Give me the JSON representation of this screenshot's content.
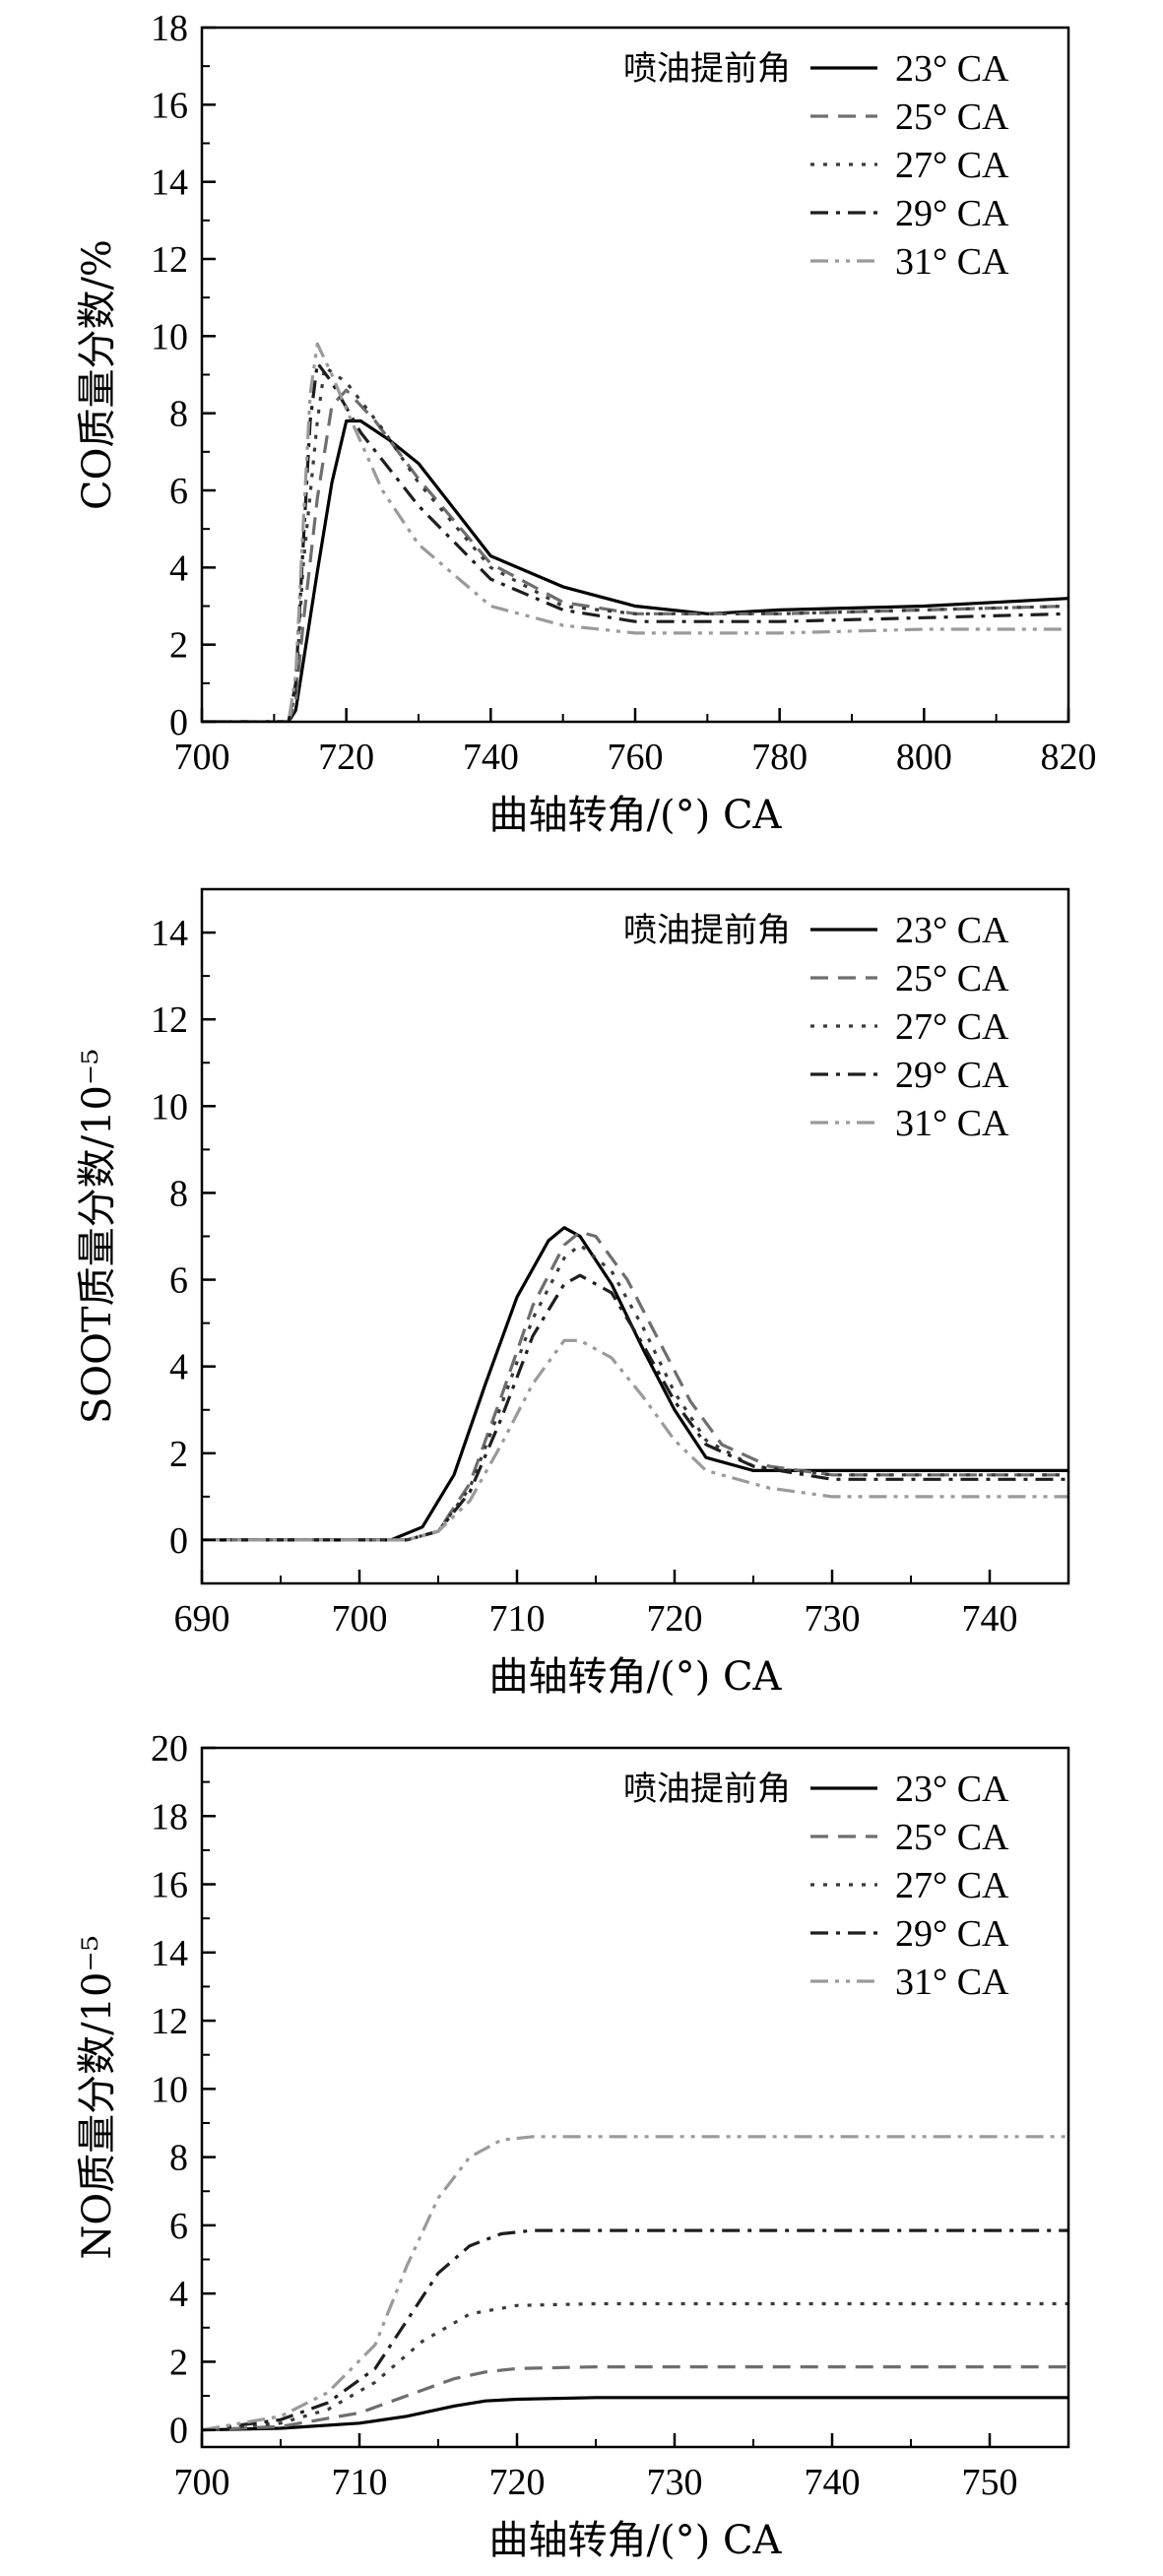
{
  "chart_data": [
    {
      "type": "line",
      "ylabel": "CO质量分数/%",
      "xlabel": "曲轴转角/(°) CA",
      "xlim": [
        700,
        820
      ],
      "ylim": [
        0,
        18
      ],
      "xticks": [
        700,
        720,
        740,
        760,
        780,
        800,
        820
      ],
      "yticks": [
        0,
        2,
        4,
        6,
        8,
        10,
        12,
        14,
        16,
        18
      ],
      "legend_title": "喷油提前角",
      "legend_position": "top-right",
      "grid": false,
      "series": [
        {
          "name": "23° CA",
          "color": "#000000",
          "dash": "solid",
          "x": [
            700,
            712,
            713,
            714,
            716,
            718,
            720,
            722,
            726,
            730,
            735,
            740,
            750,
            760,
            770,
            780,
            800,
            820
          ],
          "y": [
            0,
            0,
            0.3,
            1.5,
            3.9,
            6.2,
            7.8,
            7.8,
            7.3,
            6.7,
            5.5,
            4.3,
            3.5,
            3.0,
            2.8,
            2.9,
            3.0,
            3.2
          ]
        },
        {
          "name": "25° CA",
          "color": "#6e6e6e",
          "dash": "dashed",
          "x": [
            700,
            712,
            713,
            714,
            716,
            718,
            720,
            724,
            730,
            740,
            750,
            760,
            780,
            800,
            820
          ],
          "y": [
            0,
            0,
            0.5,
            2.5,
            5.8,
            8.2,
            8.6,
            7.8,
            6.3,
            4.1,
            3.1,
            2.8,
            2.8,
            2.9,
            3.0
          ]
        },
        {
          "name": "27° CA",
          "color": "#3a3a3a",
          "dash": "dotted",
          "x": [
            700,
            712,
            713,
            714,
            716,
            717,
            720,
            725,
            730,
            740,
            750,
            760,
            780,
            800,
            820
          ],
          "y": [
            0,
            0,
            0.8,
            4.0,
            7.8,
            9.2,
            8.8,
            7.6,
            6.2,
            4.0,
            3.0,
            2.8,
            2.8,
            2.9,
            3.0
          ]
        },
        {
          "name": "29° CA",
          "color": "#1e1e1e",
          "dash": "dashdot",
          "x": [
            700,
            712,
            713,
            714,
            715,
            716,
            718,
            722,
            730,
            740,
            750,
            760,
            780,
            800,
            820
          ],
          "y": [
            0,
            0,
            1.0,
            4.5,
            7.8,
            9.3,
            8.8,
            7.5,
            5.6,
            3.7,
            2.9,
            2.6,
            2.6,
            2.7,
            2.8
          ]
        },
        {
          "name": "31° CA",
          "color": "#9a9a9a",
          "dash": "dashdotdot",
          "x": [
            700,
            712,
            713,
            714,
            715,
            716,
            718,
            720,
            725,
            730,
            740,
            750,
            760,
            780,
            800,
            820
          ],
          "y": [
            0,
            0,
            1.2,
            5.0,
            8.5,
            9.8,
            9.0,
            8.1,
            6.0,
            4.6,
            3.0,
            2.5,
            2.3,
            2.3,
            2.4,
            2.4
          ]
        }
      ]
    },
    {
      "type": "line",
      "ylabel": "SOOT质量分数/10⁻⁵",
      "xlabel": "曲轴转角/(°) CA",
      "xlim": [
        690,
        745
      ],
      "ylim": [
        -1,
        15
      ],
      "xticks": [
        690,
        700,
        710,
        720,
        730,
        740
      ],
      "yticks": [
        0,
        2,
        4,
        6,
        8,
        10,
        12,
        14
      ],
      "legend_title": "喷油提前角",
      "legend_position": "top-right",
      "grid": false,
      "series": [
        {
          "name": "23° CA",
          "color": "#000000",
          "dash": "solid",
          "x": [
            690,
            702,
            704,
            706,
            708,
            710,
            712,
            713,
            714,
            716,
            718,
            720,
            722,
            725,
            730,
            745
          ],
          "y": [
            0,
            0,
            0.3,
            1.5,
            3.6,
            5.6,
            6.9,
            7.2,
            7.0,
            5.9,
            4.4,
            3.0,
            1.9,
            1.6,
            1.6,
            1.6
          ]
        },
        {
          "name": "25° CA",
          "color": "#6e6e6e",
          "dash": "dashed",
          "x": [
            690,
            703,
            705,
            707,
            709,
            711,
            713,
            714,
            715,
            717,
            719,
            721,
            723,
            726,
            730,
            745
          ],
          "y": [
            0,
            0,
            0.2,
            1.3,
            3.3,
            5.4,
            6.8,
            7.1,
            7.0,
            6.0,
            4.6,
            3.2,
            2.2,
            1.7,
            1.5,
            1.5
          ]
        },
        {
          "name": "27° CA",
          "color": "#3a3a3a",
          "dash": "dotted",
          "x": [
            690,
            703,
            705,
            707,
            709,
            711,
            713,
            714,
            716,
            718,
            720,
            722,
            725,
            730,
            745
          ],
          "y": [
            0,
            0,
            0.2,
            1.2,
            3.1,
            5.1,
            6.5,
            6.8,
            6.2,
            4.9,
            3.4,
            2.3,
            1.7,
            1.5,
            1.5
          ]
        },
        {
          "name": "29° CA",
          "color": "#1e1e1e",
          "dash": "dashdot",
          "x": [
            690,
            703,
            705,
            707,
            709,
            711,
            713,
            714,
            716,
            718,
            720,
            722,
            725,
            730,
            745
          ],
          "y": [
            0,
            0,
            0.2,
            1.1,
            2.8,
            4.7,
            5.9,
            6.1,
            5.7,
            4.5,
            3.2,
            2.2,
            1.7,
            1.4,
            1.4
          ]
        },
        {
          "name": "31° CA",
          "color": "#9a9a9a",
          "dash": "dashdotdot",
          "x": [
            690,
            703,
            705,
            707,
            709,
            711,
            713,
            714,
            716,
            718,
            720,
            722,
            726,
            730,
            745
          ],
          "y": [
            0,
            0,
            0.2,
            0.9,
            2.2,
            3.6,
            4.6,
            4.6,
            4.2,
            3.3,
            2.3,
            1.6,
            1.2,
            1.0,
            1.0
          ]
        }
      ]
    },
    {
      "type": "line",
      "ylabel": "NO质量分数/10⁻⁵",
      "xlabel": "曲轴转角/(°) CA",
      "xlim": [
        700,
        755
      ],
      "ylim": [
        -0.5,
        20
      ],
      "xticks": [
        700,
        710,
        720,
        730,
        740,
        750
      ],
      "yticks": [
        0,
        2,
        4,
        6,
        8,
        10,
        12,
        14,
        16,
        18,
        20
      ],
      "legend_title": "喷油提前角",
      "legend_position": "top-right",
      "grid": false,
      "series": [
        {
          "name": "23° CA",
          "color": "#000000",
          "dash": "solid",
          "x": [
            700,
            705,
            710,
            713,
            716,
            718,
            720,
            725,
            755
          ],
          "y": [
            0,
            0.05,
            0.2,
            0.4,
            0.7,
            0.85,
            0.9,
            0.95,
            0.95
          ]
        },
        {
          "name": "25° CA",
          "color": "#6e6e6e",
          "dash": "dashed",
          "x": [
            700,
            705,
            710,
            713,
            716,
            718,
            720,
            725,
            755
          ],
          "y": [
            0,
            0.1,
            0.5,
            1.0,
            1.5,
            1.7,
            1.8,
            1.85,
            1.85
          ]
        },
        {
          "name": "27° CA",
          "color": "#3a3a3a",
          "dash": "dotted",
          "x": [
            700,
            705,
            708,
            711,
            714,
            717,
            720,
            725,
            755
          ],
          "y": [
            0,
            0.2,
            0.6,
            1.4,
            2.6,
            3.4,
            3.65,
            3.7,
            3.7
          ]
        },
        {
          "name": "29° CA",
          "color": "#1e1e1e",
          "dash": "dashdot",
          "x": [
            700,
            705,
            708,
            711,
            713,
            715,
            717,
            719,
            721,
            725,
            755
          ],
          "y": [
            0,
            0.3,
            0.8,
            1.8,
            3.2,
            4.6,
            5.4,
            5.75,
            5.85,
            5.85,
            5.85
          ]
        },
        {
          "name": "31° CA",
          "color": "#9a9a9a",
          "dash": "dashdotdot",
          "x": [
            700,
            705,
            708,
            711,
            713,
            715,
            717,
            719,
            721,
            725,
            755
          ],
          "y": [
            0,
            0.4,
            1.1,
            2.5,
            4.8,
            6.8,
            8.0,
            8.5,
            8.6,
            8.6,
            8.6
          ]
        }
      ]
    }
  ]
}
